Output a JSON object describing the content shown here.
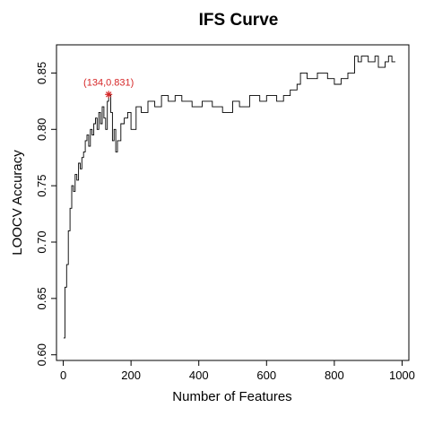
{
  "chart_data": {
    "type": "line",
    "title": "IFS Curve",
    "xlabel": "Number of Features",
    "ylabel": "LOOCV Accuracy",
    "xlim": [
      -20,
      1020
    ],
    "ylim": [
      0.595,
      0.875
    ],
    "x_ticks": [
      0,
      200,
      400,
      600,
      800,
      1000
    ],
    "x_tick_labels": [
      "0",
      "200",
      "400",
      "600",
      "800",
      "1000"
    ],
    "y_ticks": [
      0.6,
      0.65,
      0.7,
      0.75,
      0.8,
      0.85
    ],
    "y_tick_labels": [
      "0.60",
      "0.65",
      "0.70",
      "0.75",
      "0.80",
      "0.85"
    ],
    "grid": false,
    "line_color": "#000000",
    "highlight_color": "#d62728",
    "highlight": {
      "x": 134,
      "y": 0.831,
      "label": "(134,0.831)"
    },
    "series": [
      {
        "x": [
          1,
          5,
          10,
          15,
          20,
          25,
          30,
          35,
          40,
          45,
          50,
          55,
          60,
          65,
          70,
          75,
          80,
          85,
          90,
          95,
          100,
          105,
          110,
          115,
          120,
          125,
          130,
          134,
          140,
          145,
          150,
          155,
          160,
          170,
          180,
          190,
          200,
          215,
          230,
          250,
          270,
          290,
          310,
          330,
          350,
          380,
          410,
          440,
          470,
          500,
          520,
          550,
          580,
          600,
          630,
          650,
          670,
          690,
          700,
          720,
          750,
          780,
          800,
          820,
          840,
          860,
          870,
          880,
          900,
          920,
          930,
          950,
          960,
          970,
          980
        ],
        "y": [
          0.615,
          0.66,
          0.68,
          0.71,
          0.73,
          0.75,
          0.745,
          0.76,
          0.755,
          0.77,
          0.765,
          0.775,
          0.78,
          0.79,
          0.795,
          0.785,
          0.8,
          0.795,
          0.805,
          0.81,
          0.8,
          0.815,
          0.805,
          0.82,
          0.81,
          0.8,
          0.825,
          0.831,
          0.815,
          0.79,
          0.8,
          0.78,
          0.79,
          0.805,
          0.81,
          0.815,
          0.8,
          0.82,
          0.815,
          0.825,
          0.82,
          0.83,
          0.825,
          0.83,
          0.825,
          0.82,
          0.825,
          0.82,
          0.815,
          0.825,
          0.82,
          0.83,
          0.825,
          0.83,
          0.825,
          0.83,
          0.835,
          0.84,
          0.85,
          0.845,
          0.85,
          0.845,
          0.84,
          0.845,
          0.85,
          0.865,
          0.86,
          0.865,
          0.86,
          0.865,
          0.855,
          0.86,
          0.865,
          0.86,
          0.86
        ]
      }
    ]
  }
}
